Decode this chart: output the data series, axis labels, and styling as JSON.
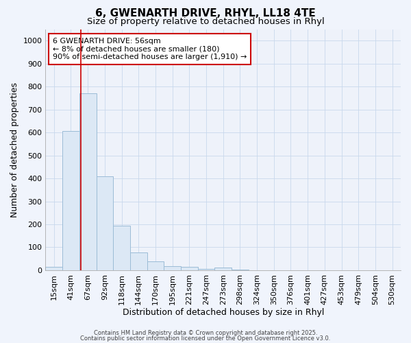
{
  "title1": "6, GWENARTH DRIVE, RHYL, LL18 4TE",
  "title2": "Size of property relative to detached houses in Rhyl",
  "xlabel": "Distribution of detached houses by size in Rhyl",
  "ylabel": "Number of detached properties",
  "categories": [
    "15sqm",
    "41sqm",
    "67sqm",
    "92sqm",
    "118sqm",
    "144sqm",
    "170sqm",
    "195sqm",
    "221sqm",
    "247sqm",
    "273sqm",
    "298sqm",
    "324sqm",
    "350sqm",
    "376sqm",
    "401sqm",
    "427sqm",
    "453sqm",
    "479sqm",
    "504sqm",
    "530sqm"
  ],
  "bar_values": [
    15,
    605,
    770,
    410,
    193,
    78,
    40,
    18,
    14,
    5,
    11,
    3,
    0,
    0,
    0,
    0,
    0,
    0,
    0,
    0,
    0
  ],
  "bar_color": "#dce8f5",
  "bar_edge_color": "#9bbcd6",
  "grid_color": "#c8d8ec",
  "background_color": "#f0f4fc",
  "plot_background": "#eef2fa",
  "red_line_x": 1.58,
  "annotation_text": "6 GWENARTH DRIVE: 56sqm\n← 8% of detached houses are smaller (180)\n90% of semi-detached houses are larger (1,910) →",
  "annotation_box_color": "#ffffff",
  "annotation_border_color": "#cc0000",
  "ylim": [
    0,
    1050
  ],
  "yticks": [
    0,
    100,
    200,
    300,
    400,
    500,
    600,
    700,
    800,
    900,
    1000
  ],
  "footer1": "Contains HM Land Registry data © Crown copyright and database right 2025.",
  "footer2": "Contains public sector information licensed under the Open Government Licence v3.0.",
  "title1_fontsize": 11,
  "title2_fontsize": 9.5,
  "xlabel_fontsize": 9,
  "ylabel_fontsize": 9,
  "tick_fontsize": 8,
  "footer_fontsize": 6,
  "ann_fontsize": 8
}
